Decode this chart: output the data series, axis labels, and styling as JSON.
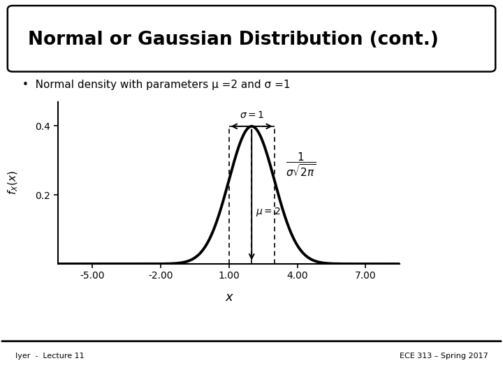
{
  "title": "Normal or Gaussian Distribution (cont.)",
  "mu": 2,
  "sigma": 1,
  "xlim": [
    -6.5,
    8.5
  ],
  "ylim": [
    0,
    0.47
  ],
  "xticks": [
    -5.0,
    -2.0,
    1.0,
    4.0,
    7.0
  ],
  "yticks": [
    0.2,
    0.4
  ],
  "xlabel": "x",
  "footer_left": "Iyer  -  Lecture 11",
  "footer_right": "ECE 313 – Spring 2017",
  "bg_color": "#ffffff",
  "curve_color": "#000000"
}
